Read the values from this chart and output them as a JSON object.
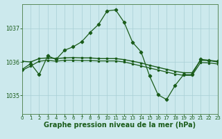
{
  "background_color": "#cce9ed",
  "grid_color": "#a8ced4",
  "line_color": "#1a5c1a",
  "xlabel": "Graphe pression niveau de la mer (hPa)",
  "xlabel_fontsize": 7.0,
  "xlim": [
    0,
    23
  ],
  "ylim": [
    1034.45,
    1037.72
  ],
  "yticks": [
    1035,
    1036,
    1037
  ],
  "xticks": [
    0,
    1,
    2,
    3,
    4,
    5,
    6,
    7,
    8,
    9,
    10,
    11,
    12,
    13,
    14,
    15,
    16,
    17,
    18,
    19,
    20,
    21,
    22,
    23
  ],
  "curve_main_x": [
    0,
    1,
    2,
    3,
    4,
    5,
    6,
    7,
    8,
    9,
    10,
    11,
    12,
    13,
    14,
    15,
    16,
    17,
    18,
    19,
    20,
    21,
    22,
    23
  ],
  "curve_main_y": [
    1035.78,
    1035.95,
    1035.62,
    1036.18,
    1036.08,
    1036.35,
    1036.45,
    1036.6,
    1036.88,
    1037.12,
    1037.52,
    1037.55,
    1037.18,
    1036.58,
    1036.3,
    1035.58,
    1035.02,
    1034.88,
    1035.3,
    1035.62,
    1035.62,
    1036.08,
    1036.05,
    1036.02
  ],
  "curve_upper_x": [
    0,
    1,
    2,
    3,
    4,
    5,
    6,
    7,
    8,
    9,
    10,
    11,
    12,
    13,
    14,
    15,
    16,
    17,
    18,
    19,
    20,
    21,
    22,
    23
  ],
  "curve_upper_y": [
    1036.02,
    1036.0,
    1036.1,
    1036.12,
    1036.1,
    1036.12,
    1036.13,
    1036.12,
    1036.12,
    1036.1,
    1036.1,
    1036.1,
    1036.07,
    1036.02,
    1035.97,
    1035.9,
    1035.84,
    1035.78,
    1035.72,
    1035.68,
    1035.68,
    1036.05,
    1036.04,
    1036.0
  ],
  "curve_lower_x": [
    0,
    1,
    2,
    3,
    4,
    5,
    6,
    7,
    8,
    9,
    10,
    11,
    12,
    13,
    14,
    15,
    16,
    17,
    18,
    19,
    20,
    21,
    22,
    23
  ],
  "curve_lower_y": [
    1035.75,
    1035.88,
    1036.02,
    1036.05,
    1036.02,
    1036.05,
    1036.05,
    1036.04,
    1036.04,
    1036.03,
    1036.03,
    1036.03,
    1036.0,
    1035.94,
    1035.88,
    1035.82,
    1035.76,
    1035.7,
    1035.64,
    1035.6,
    1035.6,
    1035.98,
    1035.97,
    1035.94
  ]
}
